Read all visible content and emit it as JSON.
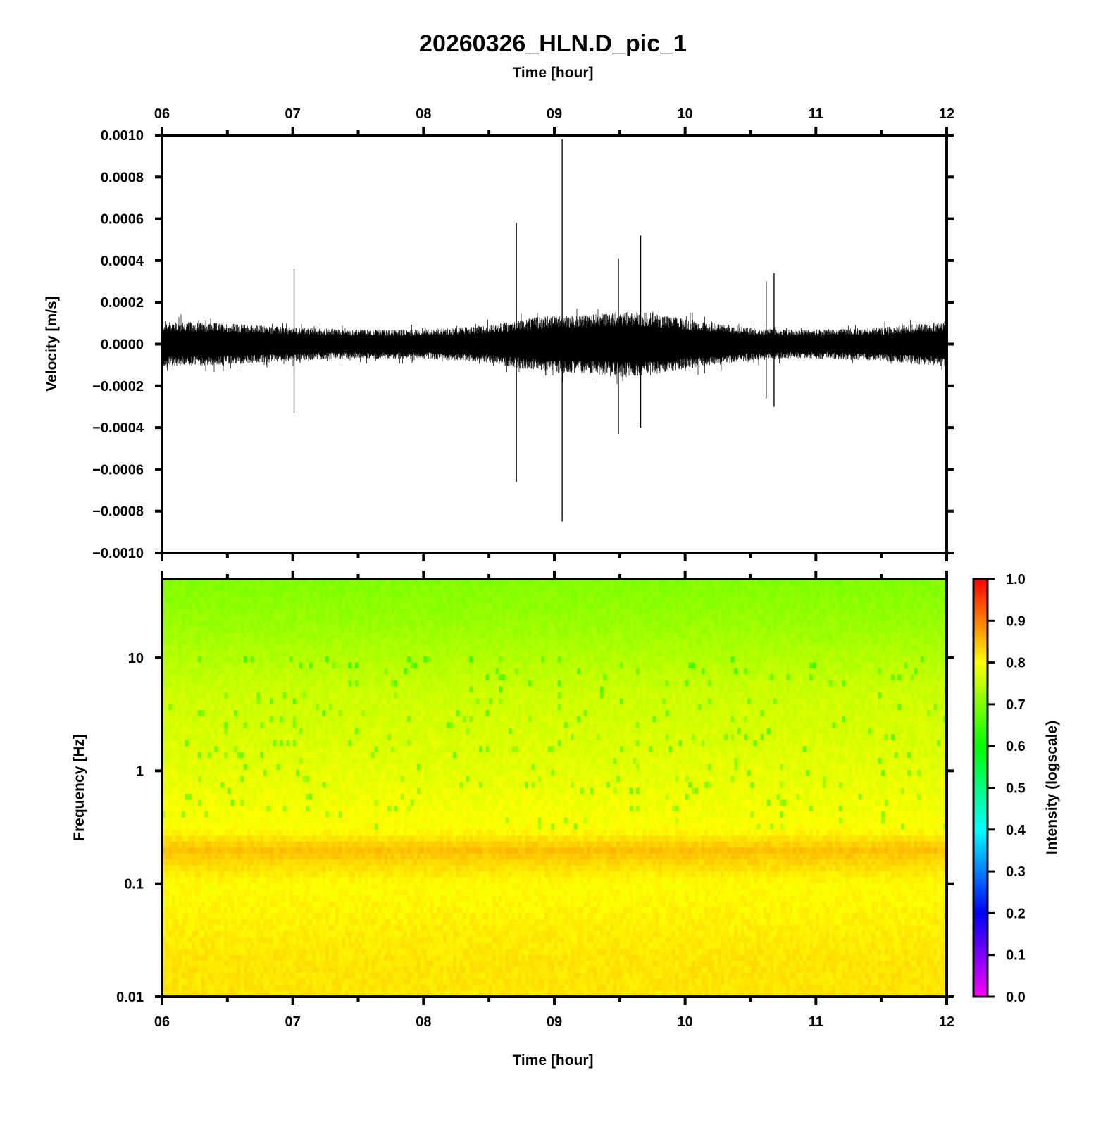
{
  "chart_data": [
    {
      "type": "line",
      "title": "20260326_HLN.D_pic_1",
      "xlabel": "Time [hour]",
      "ylabel": "Velocity [m/s]",
      "x_tick_labels": [
        "06",
        "07",
        "08",
        "09",
        "10",
        "11",
        "12"
      ],
      "xlim": [
        6,
        12
      ],
      "ylim": [
        -0.001,
        0.001
      ],
      "y_tick_labels": [
        "0.0010",
        "0.0008",
        "0.0006",
        "0.0004",
        "0.0002",
        "0.0000",
        "−0.0002",
        "−0.0004",
        "−0.0006",
        "−0.0008",
        "−0.0010"
      ],
      "y_ticks": [
        0.001,
        0.0008,
        0.0006,
        0.0004,
        0.0002,
        0.0,
        -0.0002,
        -0.0004,
        -0.0006,
        -0.0008,
        -0.001
      ],
      "series_color": "#000000",
      "noise_envelope": {
        "x": [
          6.0,
          6.5,
          7.0,
          7.5,
          8.0,
          8.5,
          8.75,
          9.0,
          9.25,
          9.5,
          9.75,
          10.0,
          10.25,
          10.5,
          10.75,
          11.0,
          11.5,
          12.0
        ],
        "amplitude": [
          0.00011,
          0.0001,
          8e-05,
          7e-05,
          7e-05,
          9e-05,
          0.00012,
          0.00014,
          0.00014,
          0.00016,
          0.00015,
          0.00012,
          0.0001,
          8e-05,
          7e-05,
          7e-05,
          8e-05,
          0.00011
        ]
      },
      "spikes": [
        {
          "x": 7.01,
          "max": 0.00036,
          "min": -0.00033
        },
        {
          "x": 8.71,
          "max": 0.00058,
          "min": -0.00066
        },
        {
          "x": 9.06,
          "max": 0.00098,
          "min": -0.00085
        },
        {
          "x": 9.49,
          "max": 0.00041,
          "min": -0.00043
        },
        {
          "x": 9.66,
          "max": 0.00052,
          "min": -0.0004
        },
        {
          "x": 10.62,
          "max": 0.0003,
          "min": -0.00026
        },
        {
          "x": 10.68,
          "max": 0.00034,
          "min": -0.0003
        }
      ]
    },
    {
      "type": "heatmap",
      "xlabel": "Time [hour]",
      "ylabel": "Frequency [Hz]",
      "x_tick_labels": [
        "06",
        "07",
        "08",
        "09",
        "10",
        "11",
        "12"
      ],
      "xlim": [
        6,
        12
      ],
      "y_scale": "log",
      "ylim": [
        0.01,
        50
      ],
      "y_ticks": [
        10,
        1,
        0.1,
        0.01
      ],
      "y_tick_labels": [
        "10",
        "1",
        "0.1",
        "0.01"
      ],
      "intensity_profile": {
        "frequency_hz": [
          50,
          20,
          10,
          5,
          2,
          1,
          0.5,
          0.3,
          0.2,
          0.1,
          0.05,
          0.02,
          0.01
        ],
        "intensity": [
          0.7,
          0.72,
          0.74,
          0.76,
          0.77,
          0.78,
          0.79,
          0.8,
          0.85,
          0.8,
          0.81,
          0.82,
          0.82
        ]
      },
      "colorbar": {
        "label": "Intensity (logscale)",
        "range": [
          0.0,
          1.0
        ],
        "tick_labels": [
          "1.0",
          "0.9",
          "0.8",
          "0.7",
          "0.6",
          "0.5",
          "0.4",
          "0.3",
          "0.2",
          "0.1",
          "0.0"
        ],
        "ticks": [
          1.0,
          0.9,
          0.8,
          0.7,
          0.6,
          0.5,
          0.4,
          0.3,
          0.2,
          0.1,
          0.0
        ],
        "colors": [
          "#ff00ff",
          "#0000ff",
          "#00ffff",
          "#00ff00",
          "#ffff00",
          "#ff0000"
        ]
      }
    }
  ]
}
